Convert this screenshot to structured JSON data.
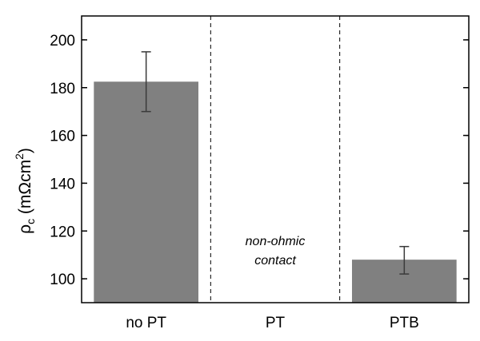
{
  "chart_data": {
    "type": "bar",
    "categories": [
      "no PT",
      "PT",
      "PTB"
    ],
    "values": [
      182.5,
      null,
      108
    ],
    "error_low": [
      170,
      null,
      102
    ],
    "error_high": [
      195,
      null,
      113.5
    ],
    "ylabel": {
      "prefix": "ρ",
      "subscript": "c",
      "middle": " (mΩcm",
      "superscript": "2",
      "suffix": ")"
    },
    "ylim": [
      90,
      210
    ],
    "yticks": [
      100,
      120,
      140,
      160,
      180,
      200
    ],
    "annotation": [
      "non-ohmic",
      "contact"
    ],
    "annotation_category": "PT",
    "bar_color": "#808080",
    "grid": false
  }
}
